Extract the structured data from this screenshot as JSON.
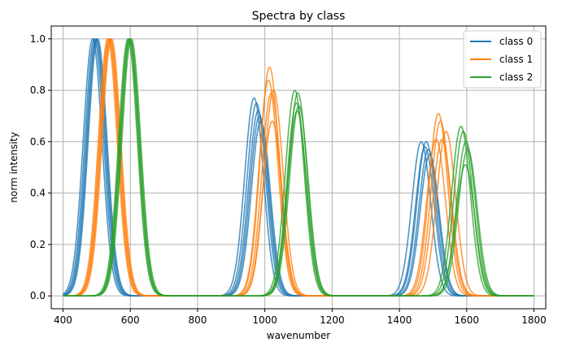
{
  "chart_data": {
    "type": "line",
    "title": "Spectra by class",
    "xlabel": "wavenumber",
    "ylabel": "norm intensity",
    "xlim": [
      365,
      1835
    ],
    "ylim": [
      -0.05,
      1.05
    ],
    "xticks": [
      400,
      600,
      800,
      1000,
      1200,
      1400,
      1600,
      1800
    ],
    "yticks": [
      0.0,
      0.2,
      0.4,
      0.6,
      0.8,
      1.0
    ],
    "grid": true,
    "legend_placement": "top-right",
    "x_range": [
      400,
      1800
    ],
    "series": [
      {
        "name": "class 0",
        "color": "#1f77b4",
        "curves": [
          {
            "peaks": [
              [
                488,
                1.0,
                28
              ],
              [
                968,
                0.77,
                28
              ],
              [
                1465,
                0.6,
                28
              ]
            ]
          },
          {
            "peaks": [
              [
                493,
                1.0,
                28
              ],
              [
                975,
                0.75,
                28
              ],
              [
                1476,
                0.58,
                28
              ]
            ]
          },
          {
            "peaks": [
              [
                497,
                1.0,
                28
              ],
              [
                980,
                0.72,
                28
              ],
              [
                1480,
                0.6,
                28
              ]
            ]
          },
          {
            "peaks": [
              [
                500,
                1.0,
                28
              ],
              [
                984,
                0.7,
                28
              ],
              [
                1486,
                0.57,
                28
              ]
            ]
          },
          {
            "peaks": [
              [
                503,
                1.0,
                28
              ],
              [
                988,
                0.68,
                28
              ],
              [
                1490,
                0.55,
                28
              ]
            ]
          }
        ]
      },
      {
        "name": "class 1",
        "color": "#ff7f0e",
        "curves": [
          {
            "peaks": [
              [
                533,
                1.0,
                28
              ],
              [
                1011,
                0.84,
                28
              ],
              [
                1509,
                0.61,
                28
              ]
            ]
          },
          {
            "peaks": [
              [
                536,
                1.0,
                28
              ],
              [
                1014,
                0.89,
                28
              ],
              [
                1516,
                0.71,
                28
              ]
            ]
          },
          {
            "peaks": [
              [
                539,
                1.0,
                28
              ],
              [
                1019,
                0.79,
                28
              ],
              [
                1522,
                0.68,
                28
              ]
            ]
          },
          {
            "peaks": [
              [
                541,
                1.0,
                28
              ],
              [
                1022,
                0.68,
                28
              ],
              [
                1527,
                0.61,
                28
              ]
            ]
          },
          {
            "peaks": [
              [
                544,
                1.0,
                28
              ],
              [
                1026,
                0.8,
                28
              ],
              [
                1539,
                0.64,
                28
              ]
            ]
          }
        ]
      },
      {
        "name": "class 2",
        "color": "#2ca02c",
        "curves": [
          {
            "peaks": [
              [
                593,
                1.0,
                28
              ],
              [
                1089,
                0.8,
                28
              ],
              [
                1583,
                0.66,
                28
              ]
            ]
          },
          {
            "peaks": [
              [
                596,
                1.0,
                28
              ],
              [
                1094,
                0.75,
                28
              ],
              [
                1590,
                0.64,
                28
              ]
            ]
          },
          {
            "peaks": [
              [
                598,
                1.0,
                28
              ],
              [
                1098,
                0.79,
                28
              ],
              [
                1598,
                0.6,
                28
              ]
            ]
          },
          {
            "peaks": [
              [
                600,
                1.0,
                28
              ],
              [
                1101,
                0.74,
                28
              ],
              [
                1603,
                0.57,
                28
              ]
            ]
          },
          {
            "peaks": [
              [
                603,
                1.0,
                28
              ],
              [
                1096,
                0.72,
                28
              ],
              [
                1596,
                0.51,
                28
              ]
            ]
          }
        ]
      }
    ]
  }
}
